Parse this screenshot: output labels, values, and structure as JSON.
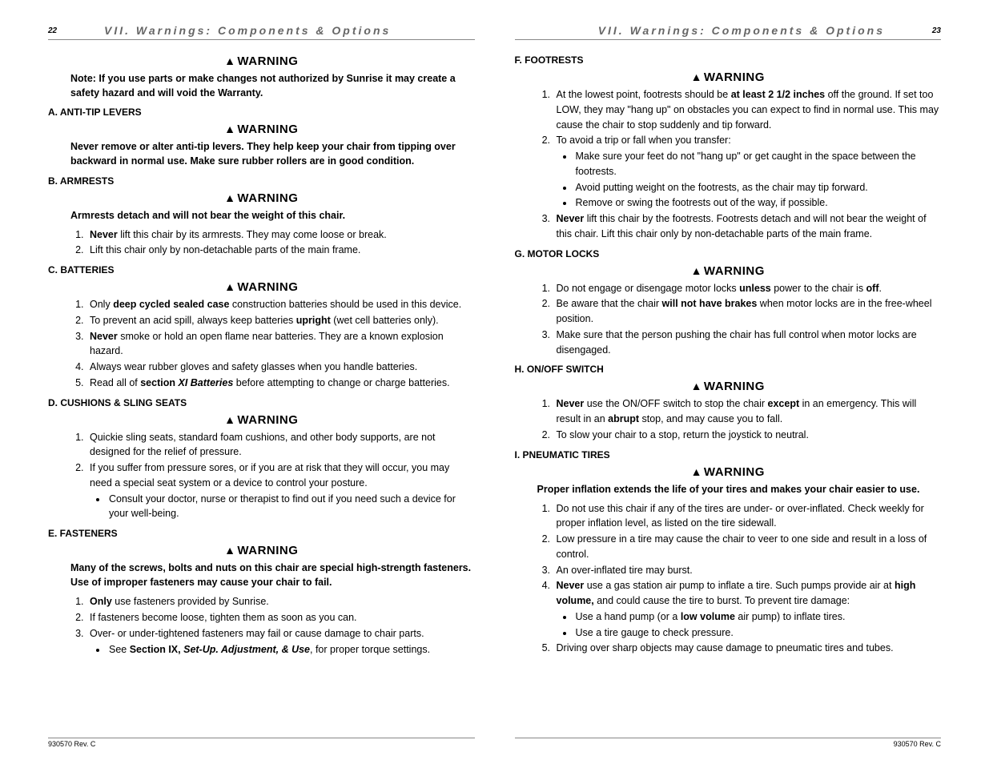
{
  "header": {
    "left_page_num": "22",
    "right_page_num": "23",
    "section_title": "VII. Warnings: Components & Options"
  },
  "footer": "930570 Rev. C",
  "left": {
    "intro_note": "Note: If you use parts or make changes not authorized by Sunrise it may create a safety hazard and will void the Warranty.",
    "sections": {
      "a": {
        "title": "A.  ANTI-TIP LEVERS",
        "note": "Never remove or alter anti-tip levers. They help keep your chair from tipping over backward in normal use. Make sure rubber rollers are in good condition."
      },
      "b": {
        "title": "B.  ARMRESTS",
        "note": "Armrests detach and will not bear the weight of this chair.",
        "items": {
          "1_pre": "Never",
          "1_post": " lift this chair by its armrests. They may come loose or break.",
          "2": "Lift this chair only by non-detachable parts of the main frame."
        }
      },
      "c": {
        "title": "C.  BATTERIES",
        "items": {
          "1_pre": "Only ",
          "1_bold": "deep cycled sealed case",
          "1_post": " construction batteries should be used in this device.",
          "2_pre": "To prevent an acid spill, always keep batteries ",
          "2_bold": "upright",
          "2_post": " (wet cell batteries only).",
          "3_pre": "Never",
          "3_post": " smoke or hold an open flame near batteries. They are a known explosion hazard.",
          "4": "Always wear rubber gloves and safety glasses when you handle batteries.",
          "5_pre": "Read all of ",
          "5_bold1": "section ",
          "5_ital": "XI Batteries",
          "5_post": " before attempting to change or charge batteries."
        }
      },
      "d": {
        "title": "D.  CUSHIONS & SLING SEATS",
        "items": {
          "1": "Quickie sling seats, standard foam cushions, and other body supports, are not designed for the relief of pressure.",
          "2": "If you suffer from pressure sores, or if you are at risk that they will occur, you may need a special seat system or a device to control your posture.",
          "2_bullet": "Consult your doctor, nurse or therapist to find out if you need such a device for your well-being."
        }
      },
      "e": {
        "title": "E.  FASTENERS",
        "note": "Many of the screws, bolts and nuts on this chair are special high-strength fasteners. Use of improper fasteners may cause your chair to fail.",
        "items": {
          "1_pre": "Only",
          "1_post": " use fasteners provided by Sunrise.",
          "2": "If fasteners become loose, tighten them as soon as you can.",
          "3": "Over- or under-tightened fasteners may fail or cause damage to chair parts.",
          "3_bullet_pre": "See ",
          "3_bullet_bold": "Section IX, ",
          "3_bullet_ital": "Set-Up. Adjustment, & Use",
          "3_bullet_post": ", for proper torque settings."
        }
      }
    }
  },
  "right": {
    "sections": {
      "f": {
        "title": "F.  FOOTRESTS",
        "items": {
          "1_pre": "At the lowest point, footrests should be ",
          "1_bold": "at least 2 1/2 inches",
          "1_post": " off the ground. If set too LOW, they may \"hang up\" on obstacles you can expect to find in normal use. This may cause the chair to stop suddenly and tip forward.",
          "2": "To avoid a trip or fall when you transfer:",
          "2_b1": "Make sure your feet do not \"hang up\" or get caught in the space between the footrests.",
          "2_b2": "Avoid putting weight on the footrests, as the chair may tip forward.",
          "2_b3": "Remove or swing the footrests out of the way, if possible.",
          "3_pre": "Never",
          "3_post": " lift this chair by the footrests. Footrests detach and will not bear the weight of this chair. Lift this chair only by non-detachable parts of the main frame."
        }
      },
      "g": {
        "title": "G.  MOTOR LOCKS",
        "items": {
          "1_pre": "Do not engage or disengage motor locks ",
          "1_bold1": "unless",
          "1_mid": " power to the chair is ",
          "1_bold2": "off",
          "1_post": ".",
          "2_pre": "Be aware that the chair ",
          "2_bold": "will not have brakes",
          "2_post": " when motor locks are in the free-wheel position.",
          "3": "Make sure that the person pushing the chair has full control when motor locks are disengaged."
        }
      },
      "h": {
        "title": "H.  ON/OFF SWITCH",
        "items": {
          "1_pre": "Never",
          "1_mid": " use the ON/OFF switch to stop the chair ",
          "1_bold2": "except",
          "1_mid2": " in an emergency. This will result in an ",
          "1_bold3": "abrupt",
          "1_post": " stop, and may cause you to fall.",
          "2": "To slow your chair to a stop, return the joystick to neutral."
        }
      },
      "i": {
        "title": "I.  PNEUMATIC TIRES",
        "note": "Proper inflation extends the life of your tires and makes your chair easier to use.",
        "items": {
          "1": "Do not use this chair if any of the tires are under- or over-inflated. Check weekly for proper inflation level, as listed on the tire sidewall.",
          "2": "Low pressure in a tire may cause the chair to veer to one side and result in a loss of control.",
          "3": "An over-inflated tire may burst.",
          "4_pre": "Never",
          "4_mid": " use a gas station air pump to inflate a tire. Such pumps provide air at ",
          "4_bold2": "high volume,",
          "4_post": " and could cause the tire to burst. To prevent tire damage:",
          "4_b1_pre": "Use a hand pump (or a ",
          "4_b1_bold": "low volume",
          "4_b1_post": " air pump) to inflate tires.",
          "4_b2": "Use a tire gauge to check pressure.",
          "5": "Driving over sharp objects may cause damage to pneumatic tires and tubes."
        }
      }
    }
  },
  "warning_label": "WARNING"
}
